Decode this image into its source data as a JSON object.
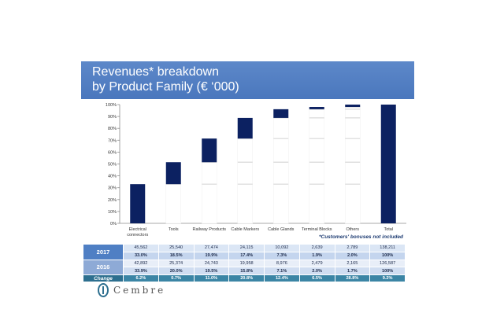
{
  "title": {
    "line1": "Revenues* breakdown",
    "line2": "by Product Family (€ ‘000)"
  },
  "chart_data": {
    "type": "bar",
    "subtype": "waterfall",
    "categories": [
      "Electrical connectors",
      "Tools",
      "Railway Products",
      "Cable Markers",
      "Cable Glands",
      "Terminal Blocks",
      "Others",
      "Total"
    ],
    "category_lines": [
      [
        "Electrical",
        "connectors"
      ],
      [
        "Tools"
      ],
      [
        "Railway Products"
      ],
      [
        "Cable Markers"
      ],
      [
        "Cable Glands"
      ],
      [
        "Terminal Blocks"
      ],
      [
        "Others"
      ],
      [
        "Total"
      ]
    ],
    "values": [
      33.0,
      18.5,
      19.9,
      17.4,
      7.3,
      1.9,
      2.0,
      100
    ],
    "ylim": [
      0,
      100
    ],
    "yticks": [
      "0%",
      "10%",
      "20%",
      "30%",
      "40%",
      "50%",
      "60%",
      "70%",
      "80%",
      "90%",
      "100%"
    ],
    "colors": {
      "bar": "#0c2161",
      "previous": "#ffffff",
      "divider": "#d9d9d9",
      "axis": "#8c8c8c"
    }
  },
  "note": "*Customers' bonuses not included",
  "table": {
    "rows": [
      {
        "year": "2017",
        "values": [
          "45,562",
          "25,540",
          "27,474",
          "24,115",
          "10,092",
          "2,639",
          "2,789",
          "138,211"
        ],
        "shares": [
          "33.0%",
          "18.5%",
          "19.9%",
          "17.4%",
          "7.3%",
          "1.9%",
          "2.0%",
          "100%"
        ]
      },
      {
        "year": "2016",
        "values": [
          "42,892",
          "25,374",
          "24,743",
          "19,958",
          "8,976",
          "2,479",
          "2,165",
          "126,587"
        ],
        "shares": [
          "33.9%",
          "20.0%",
          "19.5%",
          "15.8%",
          "7.1%",
          "2.0%",
          "1.7%",
          "100%"
        ]
      }
    ],
    "change_label": "Change",
    "change": [
      "6.2%",
      "0.7%",
      "11.0%",
      "20.8%",
      "12.4%",
      "6.5%",
      "28.8%",
      "9.2%"
    ]
  },
  "logo": {
    "text": "Cembre"
  }
}
